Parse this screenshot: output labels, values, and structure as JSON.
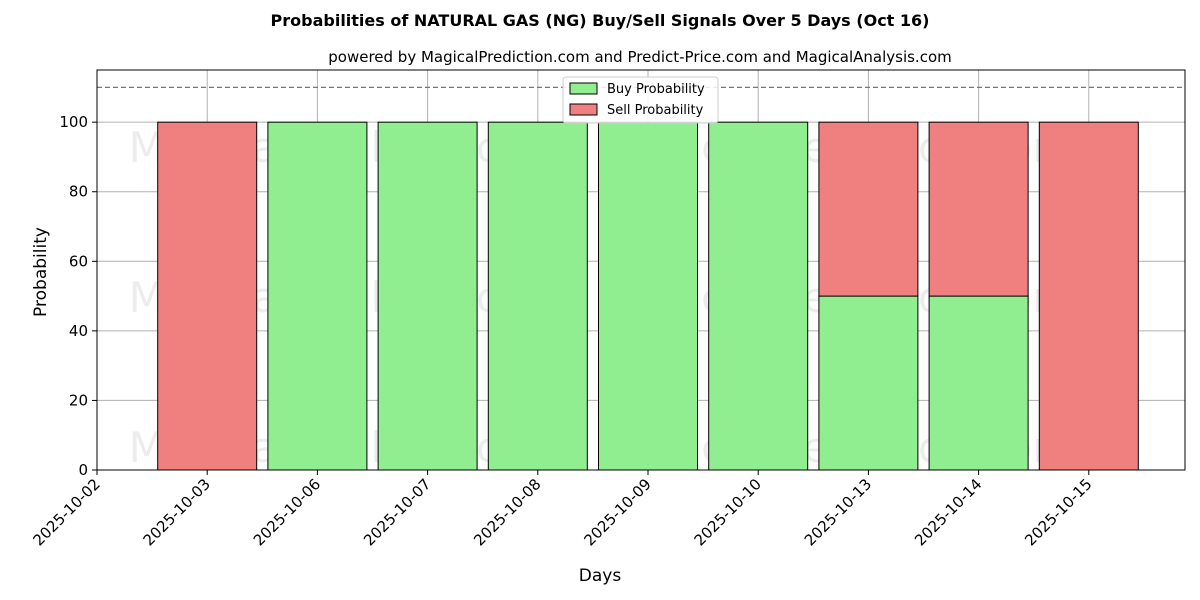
{
  "chart_data": {
    "type": "bar",
    "stacked": true,
    "title": "Probabilities of NATURAL GAS (NG) Buy/Sell Signals Over 5 Days (Oct 16)",
    "subtitle": "powered by MagicalPrediction.com and Predict-Price.com and MagicalAnalysis.com",
    "xlabel": "Days",
    "ylabel": "Probability",
    "x_tick_labels": [
      "2025-10-02",
      "2025-10-03",
      "2025-10-06",
      "2025-10-07",
      "2025-10-08",
      "2025-10-09",
      "2025-10-10",
      "2025-10-13",
      "2025-10-14",
      "2025-10-15"
    ],
    "categories": [
      "2025-10-03",
      "2025-10-06",
      "2025-10-07",
      "2025-10-08",
      "2025-10-09",
      "2025-10-10",
      "2025-10-13",
      "2025-10-14",
      "2025-10-15"
    ],
    "series": [
      {
        "name": "Buy Probability",
        "color": "#90ee90",
        "values": [
          0,
          100,
          100,
          100,
          100,
          100,
          50,
          50,
          0
        ]
      },
      {
        "name": "Sell Probability",
        "color": "#f08080",
        "values": [
          100,
          0,
          0,
          0,
          0,
          0,
          50,
          50,
          100
        ]
      }
    ],
    "ylim": [
      0,
      115
    ],
    "yticks": [
      0,
      20,
      40,
      60,
      80,
      100
    ],
    "reference_line": 110,
    "grid": true,
    "legend_position": "top-center",
    "watermarks": [
      "MagicalAnalysis.com",
      "MagicalPrediction.com"
    ]
  }
}
